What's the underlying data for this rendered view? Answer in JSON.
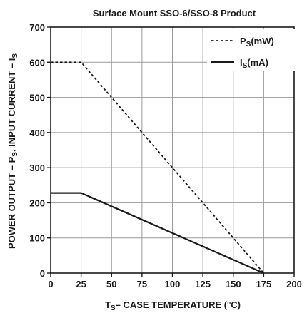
{
  "chart_data": {
    "type": "line",
    "title": "Surface Mount SSO-6/SSO-8 Product",
    "xlabel": {
      "main": "T",
      "sub": "S",
      "rest": "– CASE TEMPERATURE (°C)"
    },
    "ylabel": {
      "part1": "POWER OUTPUT – P",
      "sub1": "S",
      "part2": ", INPUT CURRENT – I",
      "sub2": "S"
    },
    "xlim": [
      0,
      200
    ],
    "ylim": [
      0,
      700
    ],
    "xticks": [
      0,
      25,
      50,
      75,
      100,
      125,
      150,
      175,
      200
    ],
    "yticks": [
      0,
      100,
      200,
      300,
      400,
      500,
      600,
      700
    ],
    "grid": true,
    "legend_position": "top-right",
    "series": [
      {
        "name": "P",
        "name_sub": "S",
        "name_unit": "(mW)",
        "style": "dashed",
        "points": [
          [
            0,
            600
          ],
          [
            25,
            600
          ],
          [
            175,
            0
          ]
        ]
      },
      {
        "name": "I",
        "name_sub": "S",
        "name_unit": "(mA)",
        "style": "solid",
        "points": [
          [
            0,
            228
          ],
          [
            25,
            228
          ],
          [
            175,
            0
          ]
        ]
      }
    ]
  }
}
